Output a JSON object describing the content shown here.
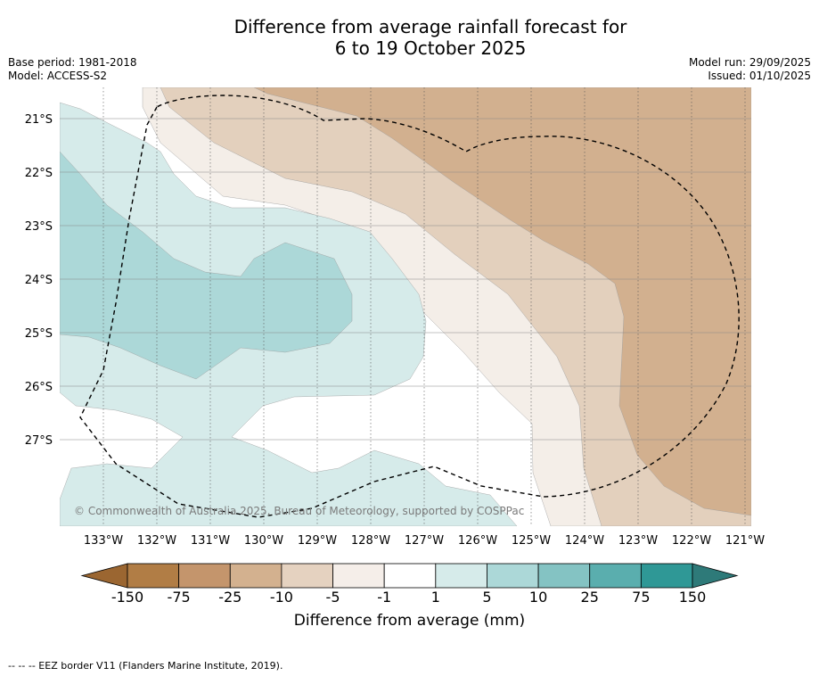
{
  "title": {
    "line1": "Difference from average rainfall forecast for",
    "line2": "6 to 19 October 2025"
  },
  "meta": {
    "base_period": "Base period: 1981-2018",
    "model": "Model: ACCESS-S2",
    "model_run": "Model run: 29/09/2025",
    "issued": "Issued: 01/10/2025"
  },
  "map": {
    "lat_labels": [
      "21°S",
      "22°S",
      "23°S",
      "24°S",
      "25°S",
      "26°S",
      "27°S"
    ],
    "lon_labels": [
      "133°W",
      "132°W",
      "131°W",
      "130°W",
      "129°W",
      "128°W",
      "127°W",
      "126°W",
      "125°W",
      "124°W",
      "123°W",
      "122°W",
      "121°W"
    ],
    "copyright": "© Commonwealth of Australia 2025, Bureau of Meteorology, supported by COSPPac",
    "colors": {
      "c_m150": "#a87539",
      "c_m75": "#c19566",
      "c_m25": "#d2b08f",
      "c_m10": "#e3d0bd",
      "c_m5": "#f4eee8",
      "c_0": "#ffffff",
      "c_p1": "#d6ebea",
      "c_p5": "#acd8d8",
      "c_p10": "#83c3c3",
      "c_p25": "#5baeac",
      "c_p75": "#2f9896",
      "c_p150": "#237070"
    }
  },
  "colorbar": {
    "labels": [
      "-150",
      "-75",
      "-25",
      "-10",
      "-5",
      "-1",
      "1",
      "5",
      "10",
      "25",
      "75",
      "150"
    ],
    "title": "Difference from average (mm)",
    "colors": [
      "#9b6631",
      "#b17d45",
      "#c4956c",
      "#d3b18f",
      "#e5d2c0",
      "#f5eee9",
      "#ffffff",
      "#d6ebea",
      "#acd8d8",
      "#84c3c3",
      "#5aaeae",
      "#2f9896",
      "#2e7a79"
    ]
  },
  "footer": {
    "legend": "-- -- -- EEZ border V11 (Flanders Marine Institute, 2019)."
  }
}
